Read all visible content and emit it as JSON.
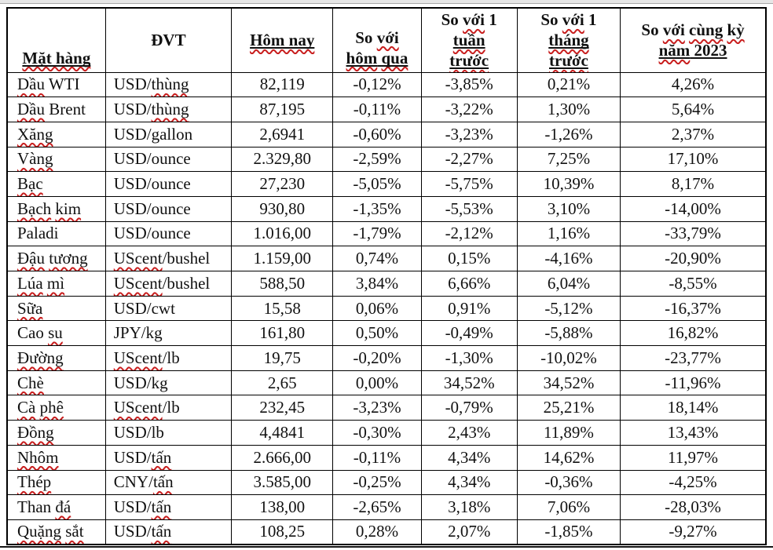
{
  "page": {
    "top_strip_color": "#e6e6e6",
    "bottom_rule_color": "#151515",
    "squiggle_color": "#c81e1e",
    "border_color": "#000000"
  },
  "table": {
    "columns": [
      {
        "key": "name",
        "header_text": "Mặt hàng"
      },
      {
        "key": "unit",
        "header_text": "ĐVT"
      },
      {
        "key": "today",
        "header_text": "Hôm nay"
      },
      {
        "key": "vs-yesterday",
        "header_text": "So với hôm qua"
      },
      {
        "key": "vs-week",
        "header_text": "So với 1 tuần trước"
      },
      {
        "key": "vs-month",
        "header_text": "So với 1 tháng trước"
      },
      {
        "key": "vs-2023",
        "header_text": "So với cùng kỳ năm 2023"
      }
    ],
    "headers": [
      {
        "segments": [
          {
            "t": "Mặt hàng",
            "sq": true,
            "u": true
          }
        ]
      },
      {
        "segments": [
          {
            "t": "ĐVT"
          }
        ]
      },
      {
        "segments": [
          {
            "t": "Hôm nay",
            "sq": true,
            "u": true
          }
        ]
      },
      {
        "segments": [
          {
            "t": "So "
          },
          {
            "t": "với",
            "sq": true
          },
          {
            "br": true
          },
          {
            "t": "hôm",
            "sq": true,
            "u": true
          },
          {
            "t": " ",
            "u": true
          },
          {
            "t": "qua",
            "sq": true,
            "u": true
          }
        ]
      },
      {
        "segments": [
          {
            "t": "So "
          },
          {
            "t": "với",
            "sq": true
          },
          {
            "t": " 1"
          },
          {
            "br": true
          },
          {
            "t": "tuần",
            "sq": true,
            "u": true
          },
          {
            "br": true
          },
          {
            "t": "trước",
            "sq": true,
            "u": true
          }
        ]
      },
      {
        "segments": [
          {
            "t": "So "
          },
          {
            "t": "với",
            "sq": true
          },
          {
            "t": " 1"
          },
          {
            "br": true
          },
          {
            "t": "tháng",
            "sq": true,
            "u": true
          },
          {
            "br": true
          },
          {
            "t": "trước",
            "sq": true,
            "u": true
          }
        ]
      },
      {
        "segments": [
          {
            "t": "So "
          },
          {
            "t": "với",
            "sq": true
          },
          {
            "t": " "
          },
          {
            "t": "cùng",
            "sq": true
          },
          {
            "t": " "
          },
          {
            "t": "kỳ",
            "sq": true
          },
          {
            "br": true
          },
          {
            "t": "năm",
            "sq": true,
            "u": true
          },
          {
            "t": " 2023",
            "u": true
          }
        ]
      }
    ],
    "rows": [
      {
        "cells": [
          [
            {
              "t": "Dầu",
              "sq": true
            },
            {
              "t": " WTI"
            }
          ],
          [
            {
              "t": "USD/"
            },
            {
              "t": "thùng",
              "sq": true
            }
          ],
          "82,119",
          "-0,12%",
          "-3,85%",
          "0,21%",
          "4,26%"
        ]
      },
      {
        "cells": [
          [
            {
              "t": "Dầu",
              "sq": true
            },
            {
              "t": " Brent"
            }
          ],
          [
            {
              "t": "USD/"
            },
            {
              "t": "thùng",
              "sq": true
            }
          ],
          "87,195",
          "-0,11%",
          "-3,22%",
          "1,30%",
          "5,64%"
        ]
      },
      {
        "cells": [
          [
            {
              "t": "Xăng",
              "sq": true
            }
          ],
          [
            {
              "t": "USD/gallon"
            }
          ],
          "2,6941",
          "-0,60%",
          "-3,23%",
          "-1,26%",
          "2,37%"
        ]
      },
      {
        "cells": [
          [
            {
              "t": "Vàng",
              "sq": true
            }
          ],
          [
            {
              "t": "USD/ounce"
            }
          ],
          "2.329,80",
          "-2,59%",
          "-2,27%",
          "7,25%",
          "17,10%"
        ]
      },
      {
        "cells": [
          [
            {
              "t": "Bạc",
              "sq": true
            }
          ],
          [
            {
              "t": "USD/ounce"
            }
          ],
          "27,230",
          "-5,05%",
          "-5,75%",
          "10,39%",
          "8,17%"
        ]
      },
      {
        "cells": [
          [
            {
              "t": "Bạch",
              "sq": true
            },
            {
              "t": " "
            },
            {
              "t": "kim",
              "sq": true
            }
          ],
          [
            {
              "t": "USD/ounce"
            }
          ],
          "930,80",
          "-1,35%",
          "-5,53%",
          "3,10%",
          "-14,00%"
        ]
      },
      {
        "cells": [
          [
            {
              "t": "Paladi"
            }
          ],
          [
            {
              "t": "USD/ounce"
            }
          ],
          "1.016,00",
          "-1,79%",
          "-2,12%",
          "1,16%",
          "-33,79%"
        ]
      },
      {
        "cells": [
          [
            {
              "t": "Đậu",
              "sq": true
            },
            {
              "t": " "
            },
            {
              "t": "tương",
              "sq": true
            }
          ],
          [
            {
              "t": "UScent",
              "sq": true
            },
            {
              "t": "/bushel"
            }
          ],
          "1.159,00",
          "0,74%",
          "0,15%",
          "-4,16%",
          "-20,90%"
        ]
      },
      {
        "cells": [
          [
            {
              "t": "Lúa",
              "sq": true
            },
            {
              "t": " "
            },
            {
              "t": "mì",
              "sq": true
            }
          ],
          [
            {
              "t": "UScent",
              "sq": true
            },
            {
              "t": "/bushel"
            }
          ],
          "588,50",
          "3,84%",
          "6,66%",
          "6,04%",
          "-8,55%"
        ]
      },
      {
        "cells": [
          [
            {
              "t": "Sữa",
              "sq": true
            }
          ],
          [
            {
              "t": "USD/cwt"
            }
          ],
          "15,58",
          "0,06%",
          "0,91%",
          "-5,12%",
          "-16,37%"
        ]
      },
      {
        "cells": [
          [
            {
              "t": "Cao "
            },
            {
              "t": "su",
              "sq": true
            }
          ],
          [
            {
              "t": "JPY/kg"
            }
          ],
          "161,80",
          "0,50%",
          "-0,49%",
          "-5,88%",
          "16,82%"
        ]
      },
      {
        "cells": [
          [
            {
              "t": "Đường",
              "sq": true
            }
          ],
          [
            {
              "t": "UScent",
              "sq": true
            },
            {
              "t": "/lb"
            }
          ],
          "19,75",
          "-0,20%",
          "-1,30%",
          "-10,02%",
          "-23,77%"
        ]
      },
      {
        "cells": [
          [
            {
              "t": "Chè",
              "sq": true
            }
          ],
          [
            {
              "t": "USD/kg"
            }
          ],
          "2,65",
          "0,00%",
          "34,52%",
          "34,52%",
          "-11,96%"
        ]
      },
      {
        "cells": [
          [
            {
              "t": "Cà",
              "sq": true
            },
            {
              "t": " "
            },
            {
              "t": "phê",
              "sq": true
            }
          ],
          [
            {
              "t": "UScent",
              "sq": true
            },
            {
              "t": "/lb"
            }
          ],
          "232,45",
          "-3,23%",
          "-0,79%",
          "25,21%",
          "18,14%"
        ]
      },
      {
        "cells": [
          [
            {
              "t": "Đồng",
              "sq": true
            }
          ],
          [
            {
              "t": "USD/lb"
            }
          ],
          "4,4841",
          "-0,30%",
          "2,43%",
          "11,89%",
          "13,43%"
        ]
      },
      {
        "cells": [
          [
            {
              "t": "Nhôm",
              "sq": true
            }
          ],
          [
            {
              "t": "USD/"
            },
            {
              "t": "tấn",
              "sq": true
            }
          ],
          "2.666,00",
          "-0,11%",
          "4,34%",
          "14,62%",
          "11,97%"
        ]
      },
      {
        "cells": [
          [
            {
              "t": "Thép",
              "sq": true
            }
          ],
          [
            {
              "t": "CNY/"
            },
            {
              "t": "tấn",
              "sq": true
            }
          ],
          "3.585,00",
          "-0,25%",
          "4,34%",
          "-0,36%",
          "-4,25%"
        ]
      },
      {
        "cells": [
          [
            {
              "t": "Than "
            },
            {
              "t": "đá",
              "sq": true
            }
          ],
          [
            {
              "t": "USD/"
            },
            {
              "t": "tấn",
              "sq": true
            }
          ],
          "138,00",
          "-2,65%",
          "3,18%",
          "7,06%",
          "-28,03%"
        ]
      },
      {
        "cells": [
          [
            {
              "t": "Quặng",
              "sq": true
            },
            {
              "t": " "
            },
            {
              "t": "sắt",
              "sq": true
            }
          ],
          [
            {
              "t": "USD/"
            },
            {
              "t": "tấn",
              "sq": true
            }
          ],
          "108,25",
          "0,28%",
          "2,07%",
          "-1,85%",
          "-9,27%"
        ]
      }
    ]
  }
}
